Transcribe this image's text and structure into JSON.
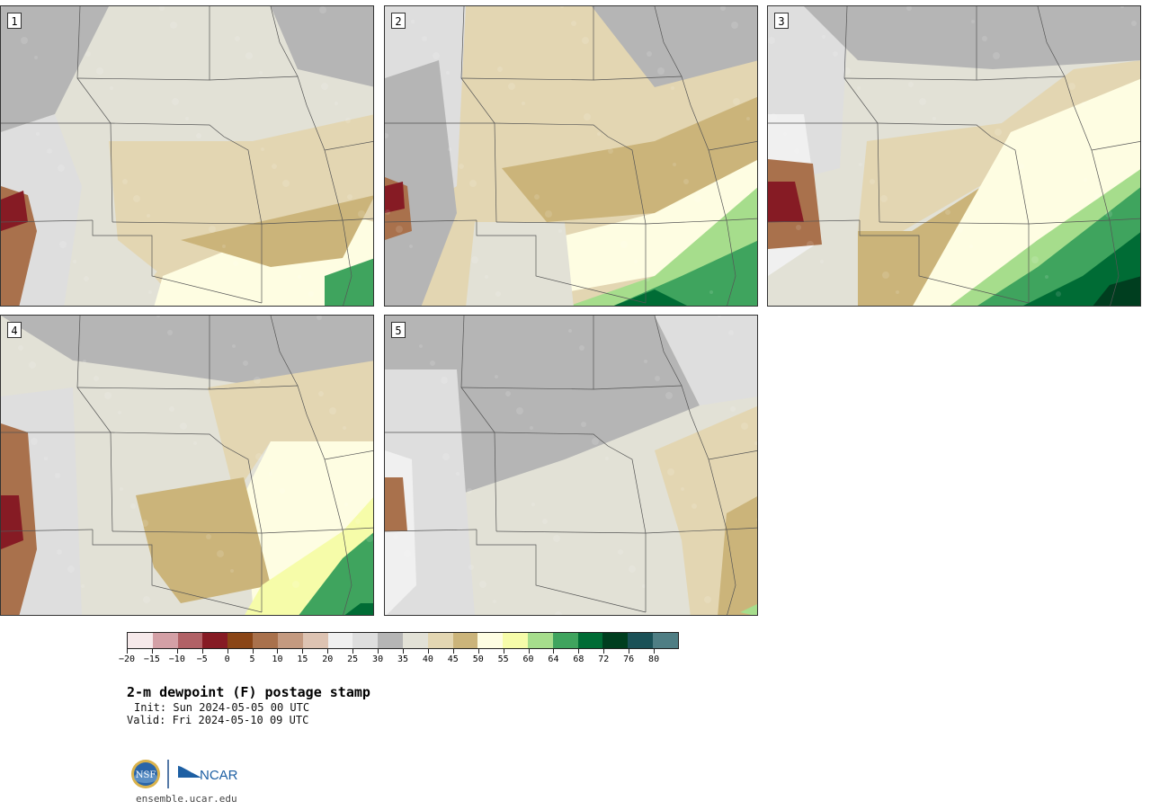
{
  "figure": {
    "title": "2-m dewpoint (F) postage stamp",
    "init": "Init: Sun 2024-05-05 00 UTC",
    "valid": "Valid: Fri 2024-05-10 09 UTC",
    "footer_url": "ensemble.ucar.edu",
    "logos": [
      "NSF",
      "NCAR"
    ]
  },
  "members": [
    {
      "label": "1"
    },
    {
      "label": "2"
    },
    {
      "label": "3"
    },
    {
      "label": "4"
    },
    {
      "label": "5"
    }
  ],
  "colorbar": {
    "unit": "F",
    "tick_labels": [
      "−20",
      "−15",
      "−10",
      "−5",
      "0",
      "5",
      "10",
      "15",
      "20",
      "25",
      "30",
      "35",
      "40",
      "45",
      "50",
      "55",
      "60",
      "64",
      "68",
      "72",
      "76",
      "80"
    ],
    "colors": [
      "#f6e9ea",
      "#d4a0a6",
      "#b16166",
      "#861b24",
      "#8a4516",
      "#a9714c",
      "#c49a80",
      "#ddc3b2",
      "#f0f0f0",
      "#dedede",
      "#b5b5b5",
      "#e2e1d6",
      "#e3d6b2",
      "#cbb47a",
      "#fefde2",
      "#f6fca9",
      "#a6dd8c",
      "#3fa45e",
      "#006c35",
      "#003e1f",
      "#1a5157",
      "#4f7e84"
    ]
  }
}
